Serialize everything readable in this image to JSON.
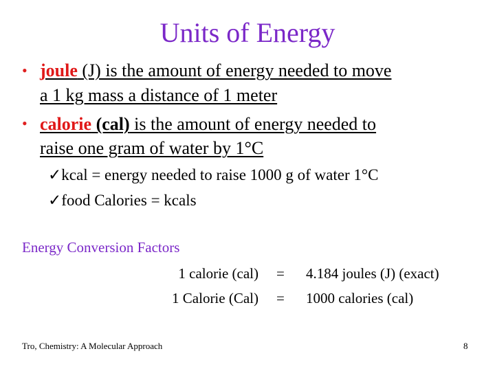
{
  "title": "Units of Energy",
  "bullets": [
    {
      "term": "joule",
      "line1": " (J) is the amount of energy needed to move",
      "line2": "a 1 kg mass a distance of 1 meter"
    },
    {
      "term": "calorie",
      "bold": " (cal)",
      "line1": " is the amount of energy needed to",
      "line2": "raise one gram of water by 1°C"
    }
  ],
  "subbullets": [
    "kcal = energy needed to raise 1000 g of water 1°C",
    "food Calories = kcals"
  ],
  "check_glyph": "ü",
  "conversion": {
    "heading": "Energy Conversion Factors",
    "rows": [
      {
        "left": "1 calorie (cal)",
        "eq": "=",
        "right": "4.184 joules (J) (exact)"
      },
      {
        "left": "1 Calorie (Cal)",
        "eq": "=",
        "right": "1000 calories (cal)"
      }
    ]
  },
  "footer": "Tro, Chemistry: A Molecular Approach",
  "page_number": "8",
  "colors": {
    "title": "#7b28c8",
    "keyword": "#e01818"
  }
}
